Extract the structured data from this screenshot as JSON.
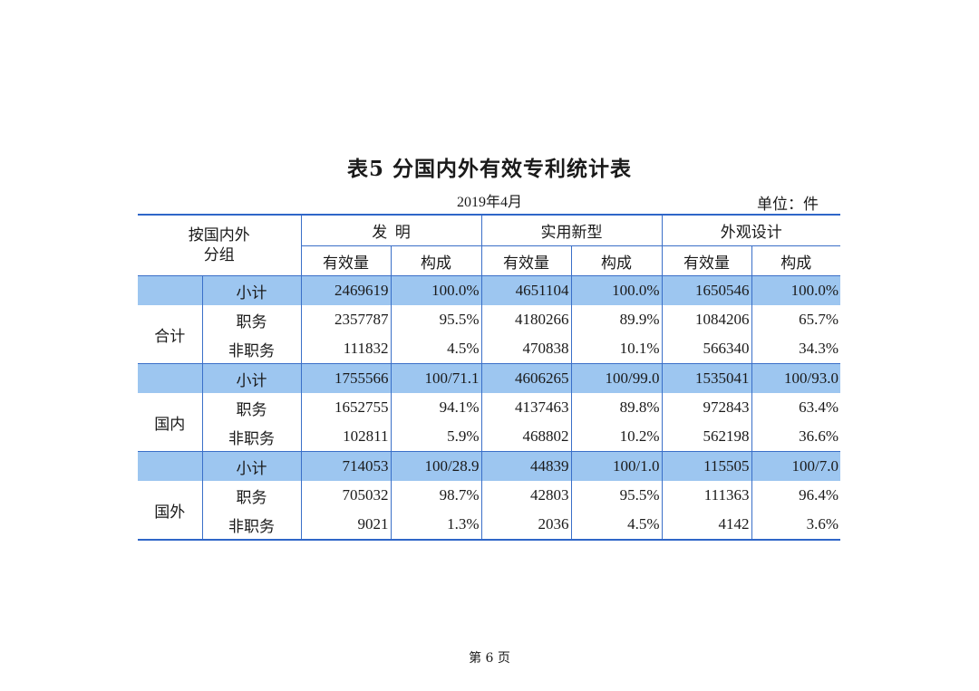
{
  "title": "表5  分国内外有效专利统计表",
  "date": "2019年4月",
  "unit": "单位：件",
  "header": {
    "corner_line1": "按国内外",
    "corner_line2": "分组",
    "groups": [
      "发  明",
      "实用新型",
      "外观设计"
    ],
    "sub_count": "有效量",
    "sub_share": "构成"
  },
  "groups": [
    {
      "label": "合计",
      "rows": [
        {
          "category": "小计",
          "values": [
            "2469619",
            "100.0%",
            "4651104",
            "100.0%",
            "1650546",
            "100.0%"
          ]
        },
        {
          "category": "职务",
          "values": [
            "2357787",
            "95.5%",
            "4180266",
            "89.9%",
            "1084206",
            "65.7%"
          ]
        },
        {
          "category": "非职务",
          "values": [
            "111832",
            "4.5%",
            "470838",
            "10.1%",
            "566340",
            "34.3%"
          ]
        }
      ]
    },
    {
      "label": "国内",
      "rows": [
        {
          "category": "小计",
          "values": [
            "1755566",
            "100/71.1",
            "4606265",
            "100/99.0",
            "1535041",
            "100/93.0"
          ]
        },
        {
          "category": "职务",
          "values": [
            "1652755",
            "94.1%",
            "4137463",
            "89.8%",
            "972843",
            "63.4%"
          ]
        },
        {
          "category": "非职务",
          "values": [
            "102811",
            "5.9%",
            "468802",
            "10.2%",
            "562198",
            "36.6%"
          ]
        }
      ]
    },
    {
      "label": "国外",
      "rows": [
        {
          "category": "小计",
          "values": [
            "714053",
            "100/28.9",
            "44839",
            "100/1.0",
            "115505",
            "100/7.0"
          ]
        },
        {
          "category": "职务",
          "values": [
            "705032",
            "98.7%",
            "42803",
            "95.5%",
            "111363",
            "96.4%"
          ]
        },
        {
          "category": "非职务",
          "values": [
            "9021",
            "1.3%",
            "2036",
            "4.5%",
            "4142",
            "3.6%"
          ]
        }
      ]
    }
  ],
  "footer": "第 6 页",
  "colors": {
    "highlight": "#9dc6f0",
    "rule": "#2f66c8"
  }
}
